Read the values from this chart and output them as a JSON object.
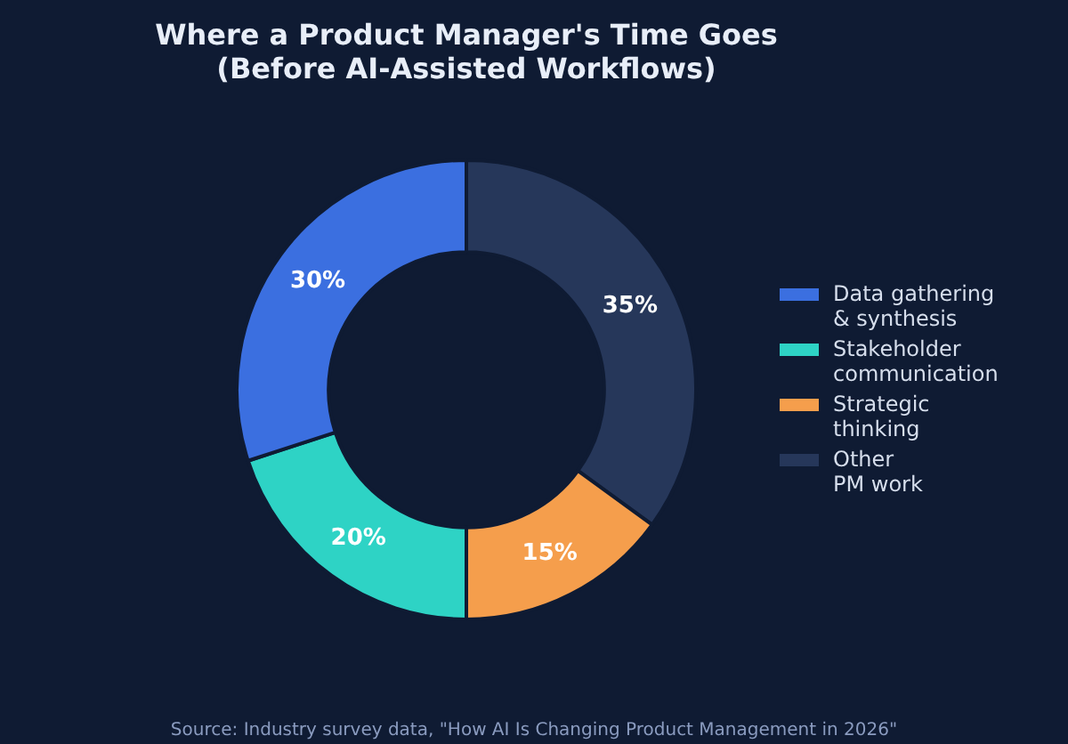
{
  "chart_data": {
    "type": "donut",
    "title": "Where a Product Manager's Time Goes\n(Before AI-Assisted Workflows)",
    "categories": [
      "Data gathering\n& synthesis",
      "Stakeholder\ncommunication",
      "Strategic\nthinking",
      "Other\nPM work"
    ],
    "values": [
      30,
      20,
      15,
      35
    ],
    "colors": [
      "#3b6fe0",
      "#2ed3c5",
      "#f59e4c",
      "#26375a"
    ],
    "value_labels": [
      "30%",
      "20%",
      "15%",
      "35%"
    ],
    "legend": "right",
    "annotations": [
      "Source: Industry survey data, \"How AI Is Changing Product Management in 2026\""
    ]
  }
}
